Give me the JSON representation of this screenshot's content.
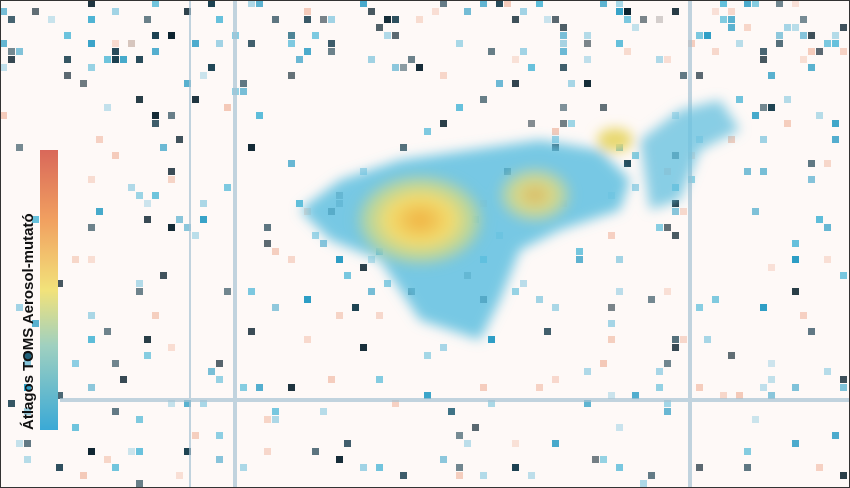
{
  "legend": {
    "title": "Átlagos TOMS Aerosol-mutató"
  }
}
